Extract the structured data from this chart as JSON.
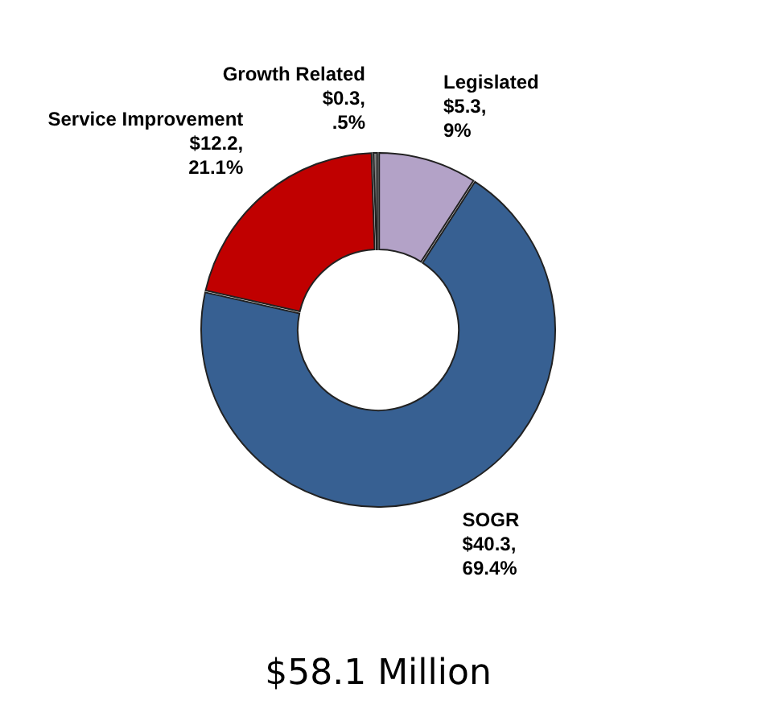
{
  "chart_data": {
    "type": "donut",
    "title": "$58.1 Million",
    "categories": [
      "Legislated",
      "SOGR",
      "Service Improvement",
      "Growth Related"
    ],
    "values": [
      5.3,
      40.3,
      12.2,
      0.3
    ],
    "value_labels": [
      "$5.3, 9%",
      "$40.3, 69.4%",
      "$12.2, 21.1%",
      "$0.3, .5%"
    ],
    "colors": [
      "#b3a2c7",
      "#376092",
      "#c00000",
      "#808080"
    ],
    "legend": false
  }
}
